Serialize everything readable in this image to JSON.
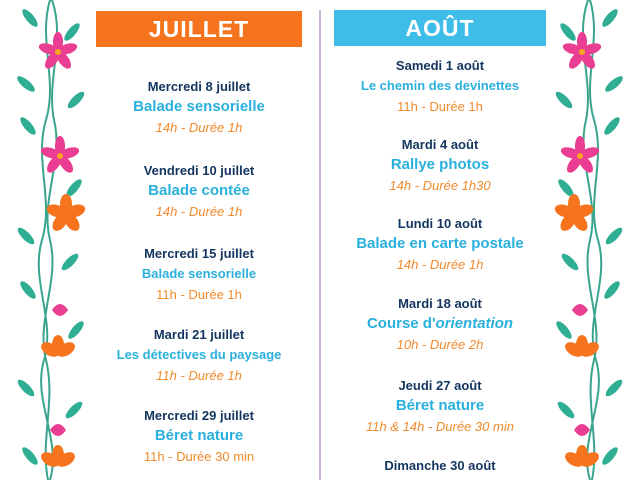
{
  "colors": {
    "orange": "#f5741d",
    "blue": "#3dbde7",
    "navy": "#13355f",
    "title_blue": "#2ab0dc",
    "time_orange": "#f08a2c",
    "pink": "#ea3e93",
    "leaf_green": "#2fae93"
  },
  "icons": [
    "flower-vine-left",
    "flower-vine-right"
  ],
  "july": {
    "header": "JUILLET",
    "events": [
      {
        "date": "Mercredi 8 juillet",
        "title": "Balade sensorielle",
        "time": "14h - Durée 1h"
      },
      {
        "date": "Vendredi 10 juillet",
        "title": "Balade contée",
        "time": "14h - Durée 1h"
      },
      {
        "date": "Mercredi 15 juillet",
        "title": "Balade sensorielle",
        "time": "11h - Durée 1h"
      },
      {
        "date": "Mardi 21 juillet",
        "title": "Les détectives du paysage",
        "time": "11h - Durée 1h"
      },
      {
        "date": "Mercredi 29 juillet",
        "title": "Béret nature",
        "time": "11h - Durée 30 min"
      }
    ]
  },
  "august": {
    "header": "AOÛT",
    "events": [
      {
        "date": "Samedi 1 août",
        "title": "Le chemin des devinettes",
        "time": "11h - Durée 1h"
      },
      {
        "date": "Mardi 4 août",
        "title": "Rallye photos",
        "time": "14h - Durée 1h30"
      },
      {
        "date": "Lundi 10 août",
        "title": "Balade en carte postale",
        "time": "14h - Durée 1h"
      },
      {
        "date": "Mardi 18 août",
        "title_a": "Course d'",
        "title_b": "orientation",
        "time": "10h - Durée 2h"
      },
      {
        "date": "Jeudi 27 août",
        "title": "Béret nature",
        "time": "11h & 14h - Durée 30 min"
      },
      {
        "date": "Dimanche 30 août"
      }
    ]
  }
}
